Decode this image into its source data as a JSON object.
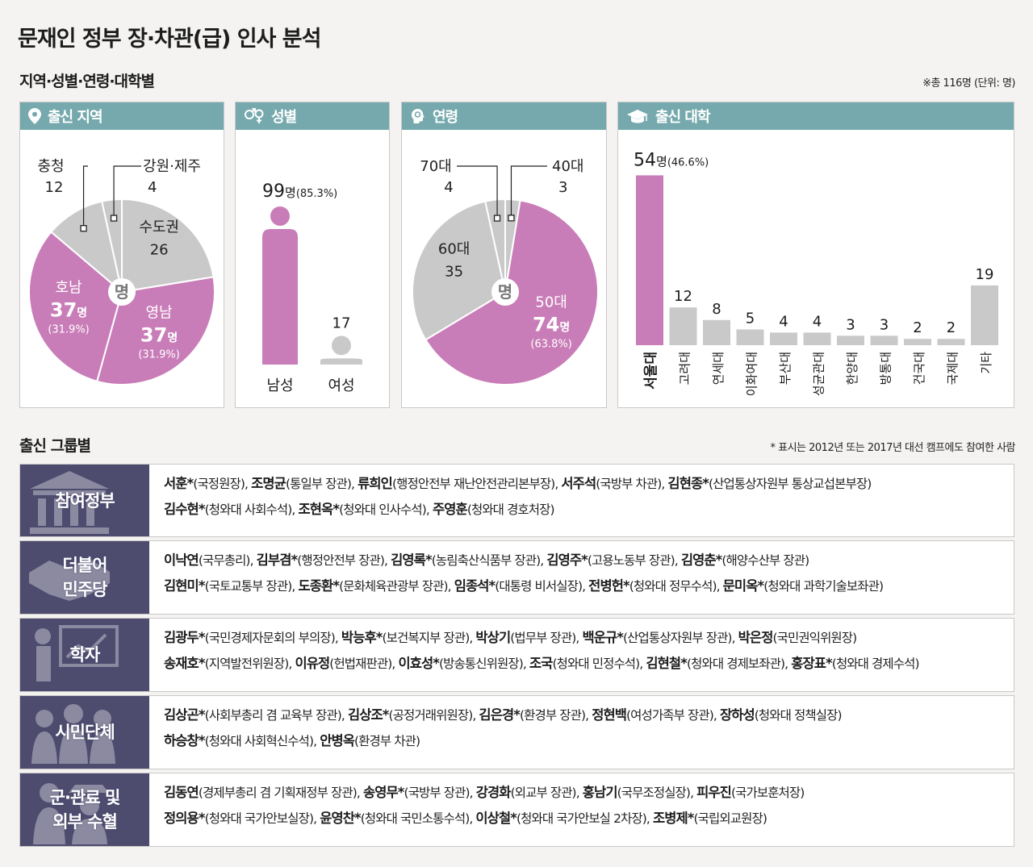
{
  "title": "문재인 정부 장·차관(급) 인사 분석",
  "subtitle": "지역·성별·연령·대학별",
  "total_note": "※총 116명 (단위: 명)",
  "unit_center": "명",
  "panels": {
    "region": {
      "title": "출신 지역"
    },
    "gender": {
      "title": "성별"
    },
    "age": {
      "title": "연령"
    },
    "univ": {
      "title": "출신 대학"
    }
  },
  "colors": {
    "pink": "#c97db8",
    "gray": "#c9c9c9",
    "header": "#76a9ad",
    "group_label": "#4d4b6e"
  },
  "chart_data": [
    {
      "type": "pie",
      "title": "출신 지역",
      "labels": [
        "수도권",
        "영남",
        "호남",
        "충청",
        "강원·제주"
      ],
      "values": [
        26,
        37,
        37,
        12,
        4
      ],
      "value_text": [
        "26",
        "37명",
        "37명",
        "12",
        "4"
      ],
      "percent_text": [
        "",
        "(31.9%)",
        "(31.9%)",
        "",
        ""
      ],
      "highlight": [
        false,
        true,
        true,
        false,
        false
      ]
    },
    {
      "type": "bar",
      "title": "성별",
      "categories": [
        "남성",
        "여성"
      ],
      "values": [
        99,
        17
      ],
      "value_text": [
        "99명",
        "17"
      ],
      "percent_text": [
        "(85.3%)",
        ""
      ]
    },
    {
      "type": "pie",
      "title": "연령",
      "labels": [
        "40대",
        "50대",
        "60대",
        "70대"
      ],
      "values": [
        3,
        74,
        35,
        4
      ],
      "value_text": [
        "3",
        "74명",
        "35",
        "4"
      ],
      "percent_text": [
        "",
        "(63.8%)",
        "",
        ""
      ],
      "highlight": [
        false,
        true,
        false,
        false
      ]
    },
    {
      "type": "bar",
      "title": "출신 대학",
      "categories": [
        "서울대",
        "고려대",
        "연세대",
        "이화여대",
        "부산대",
        "성균관대",
        "한양대",
        "방통대",
        "건국대",
        "국제대",
        "기타"
      ],
      "values": [
        54,
        12,
        8,
        5,
        4,
        4,
        3,
        3,
        2,
        2,
        19
      ],
      "value_text": [
        "54명",
        "12",
        "8",
        "5",
        "4",
        "4",
        "3",
        "3",
        "2",
        "2",
        "19"
      ],
      "percent_text": [
        "(46.6%)",
        "",
        "",
        "",
        "",
        "",
        "",
        "",
        "",
        "",
        ""
      ]
    }
  ],
  "groups_section": {
    "title": "출신 그룹별",
    "note": "* 표시는 2012년 또는 2017년 대선 캠프에도 참여한 사람"
  },
  "groups": [
    {
      "label": "참여정부",
      "lines": [
        [
          [
            "서훈*",
            "(국정원장), "
          ],
          [
            "조명균",
            "(통일부 장관), "
          ],
          [
            "류희인",
            "(행정안전부 재난안전관리본부장), "
          ],
          [
            "서주석",
            "(국방부 차관), "
          ],
          [
            "김현종*",
            "(산업통상자원부 통상교섭본부장)"
          ]
        ],
        [
          [
            "김수현*",
            "(청와대 사회수석), "
          ],
          [
            "조현옥*",
            "(청와대 인사수석), "
          ],
          [
            "주영훈",
            "(청와대 경호처장)"
          ]
        ]
      ]
    },
    {
      "label": "더불어\n민주당",
      "lines": [
        [
          [
            "이낙연",
            "(국무총리), "
          ],
          [
            "김부겸*",
            "(행정안전부 장관), "
          ],
          [
            "김영록*",
            "(농림축산식품부 장관), "
          ],
          [
            "김영주*",
            "(고용노동부 장관), "
          ],
          [
            "김영춘*",
            "(해양수산부 장관)"
          ]
        ],
        [
          [
            "김현미*",
            "(국토교통부 장관), "
          ],
          [
            "도종환*",
            "(문화체육관광부 장관), "
          ],
          [
            "임종석*",
            "(대통령 비서실장), "
          ],
          [
            "전병헌*",
            "(청와대 정무수석), "
          ],
          [
            "문미옥*",
            "(청와대 과학기술보좌관)"
          ]
        ]
      ]
    },
    {
      "label": "학자",
      "lines": [
        [
          [
            "김광두*",
            "(국민경제자문회의 부의장), "
          ],
          [
            "박능후*",
            "(보건복지부 장관), "
          ],
          [
            "박상기",
            "(법무부 장관), "
          ],
          [
            "백운규*",
            "(산업통상자원부 장관), "
          ],
          [
            "박은정",
            "(국민권익위원장)"
          ]
        ],
        [
          [
            "송재호*",
            "(지역발전위원장), "
          ],
          [
            "이유정",
            "(헌법재판관), "
          ],
          [
            "이효성*",
            "(방송통신위원장), "
          ],
          [
            "조국",
            "(청와대 민정수석), "
          ],
          [
            "김현철*",
            "(청와대 경제보좌관), "
          ],
          [
            "홍장표*",
            "(청와대 경제수석)"
          ]
        ]
      ]
    },
    {
      "label": "시민단체",
      "lines": [
        [
          [
            "김상곤*",
            "(사회부총리 겸 교육부 장관), "
          ],
          [
            "김상조*",
            "(공정거래위원장), "
          ],
          [
            "김은경*",
            "(환경부 장관), "
          ],
          [
            "정현백",
            "(여성가족부 장관), "
          ],
          [
            "장하성",
            "(청와대 정책실장)"
          ]
        ],
        [
          [
            "하승창*",
            "(청와대 사회혁신수석), "
          ],
          [
            "안병옥",
            "(환경부 차관)"
          ]
        ]
      ]
    },
    {
      "label": "군·관료 및\n외부 수혈",
      "lines": [
        [
          [
            "김동연",
            "(경제부총리 겸 기획재정부 장관), "
          ],
          [
            "송영무*",
            "(국방부 장관), "
          ],
          [
            "강경화",
            "(외교부 장관), "
          ],
          [
            "홍남기",
            "(국무조정실장), "
          ],
          [
            "피우진",
            "(국가보훈처장)"
          ]
        ],
        [
          [
            "정의용*",
            "(청와대 국가안보실장), "
          ],
          [
            "윤영찬*",
            "(청와대 국민소통수석), "
          ],
          [
            "이상철*",
            "(청와대 국가안보실 2차장), "
          ],
          [
            "조병제*",
            "(국립외교원장)"
          ]
        ]
      ]
    }
  ]
}
